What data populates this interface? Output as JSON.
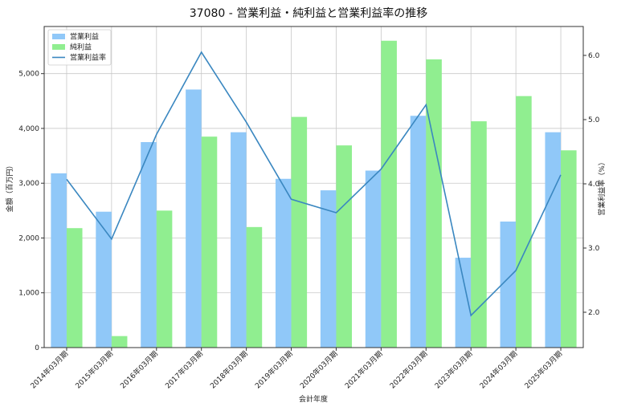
{
  "chart_data": {
    "type": "bar",
    "title": "37080 - 営業利益・純利益と営業利益率の推移",
    "xlabel": "会計年度",
    "ylabel": "金額（百万円）",
    "y2label": "営業利益率（%）",
    "categories": [
      "2014年03月期",
      "2015年03月期",
      "2016年03月期",
      "2017年03月期",
      "2018年03月期",
      "2019年03月期",
      "2020年03月期",
      "2021年03月期",
      "2022年03月期",
      "2023年03月期",
      "2024年03月期",
      "2025年03月期"
    ],
    "series": [
      {
        "name": "営業利益",
        "type": "bar",
        "axis": "left",
        "color": "#90c8f8",
        "values": [
          3180,
          2480,
          3750,
          4710,
          3930,
          3080,
          2870,
          3230,
          4230,
          1640,
          2300,
          3930
        ]
      },
      {
        "name": "純利益",
        "type": "bar",
        "axis": "left",
        "color": "#90ee90",
        "values": [
          2180,
          210,
          2500,
          3850,
          2200,
          4210,
          3690,
          5600,
          5260,
          4130,
          4590,
          3600
        ]
      },
      {
        "name": "営業利益率",
        "type": "line",
        "axis": "right",
        "color": "#3a87c0",
        "values": [
          4.07,
          3.14,
          4.77,
          6.05,
          4.96,
          3.76,
          3.55,
          4.23,
          5.23,
          1.95,
          2.65,
          4.14
        ]
      }
    ],
    "ylim": [
      0,
      5860
    ],
    "y2lim": [
      1.45,
      6.45
    ],
    "yticks": [
      0,
      1000,
      2000,
      3000,
      4000,
      5000
    ],
    "yticklabels": [
      "0",
      "1,000",
      "2,000",
      "3,000",
      "4,000",
      "5,000"
    ],
    "y2ticks": [
      2.0,
      3.0,
      4.0,
      5.0,
      6.0
    ],
    "y2ticklabels": [
      "2.0",
      "3.0",
      "4.0",
      "5.0",
      "6.0"
    ],
    "grid": true,
    "legend_position": "top-left"
  }
}
